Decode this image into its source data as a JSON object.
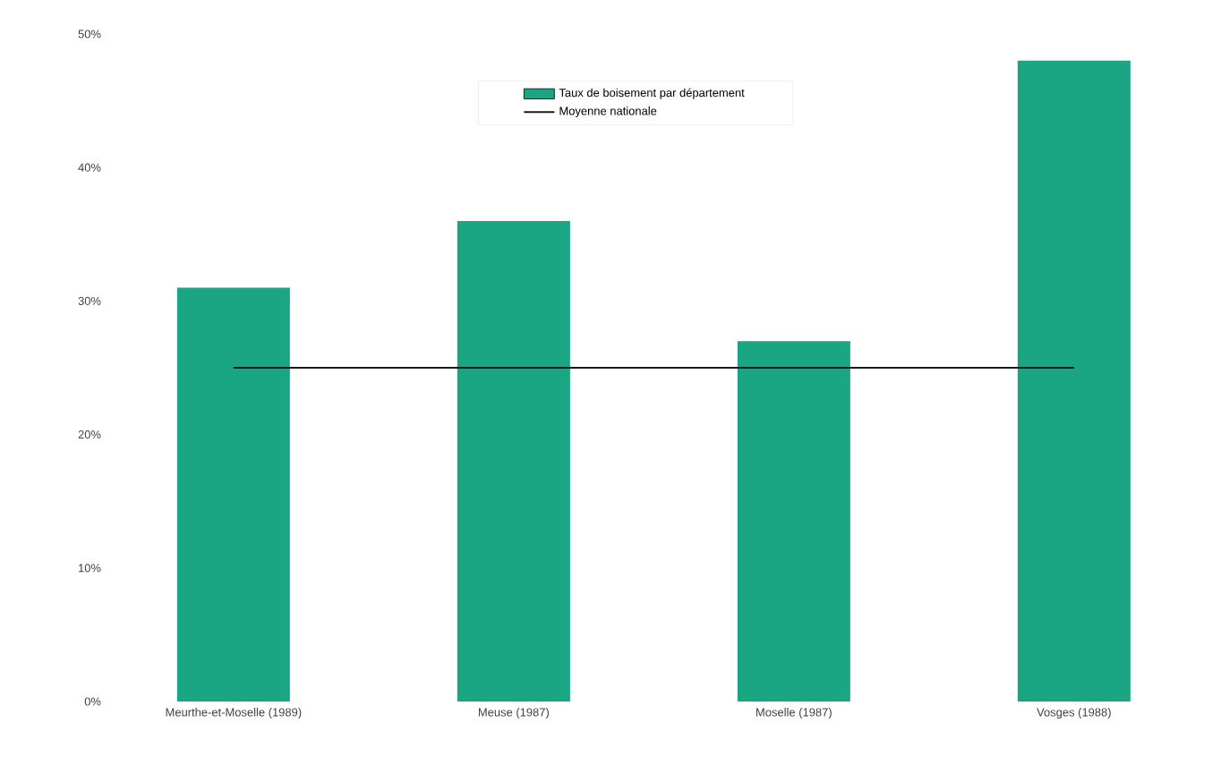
{
  "chart_data": {
    "type": "bar",
    "categories": [
      "Meurthe-et-Moselle (1989)",
      "Meuse (1987)",
      "Moselle (1987)",
      "Vosges (1988)"
    ],
    "series": [
      {
        "name": "Taux de boisement par département",
        "color": "#1aa583",
        "values": [
          31,
          36,
          27,
          48
        ]
      },
      {
        "name": "Moyenne nationale",
        "type": "line",
        "color": "#1a1a1a",
        "values": [
          25,
          25,
          25,
          25
        ]
      }
    ],
    "ylim": [
      0,
      50
    ],
    "yticks": [
      {
        "value": 0,
        "label": "0%"
      },
      {
        "value": 10,
        "label": "10%"
      },
      {
        "value": 20,
        "label": "20%"
      },
      {
        "value": 30,
        "label": "30%"
      },
      {
        "value": 40,
        "label": "40%"
      },
      {
        "value": 50,
        "label": "50%"
      }
    ],
    "legend": "top",
    "grid": false
  }
}
